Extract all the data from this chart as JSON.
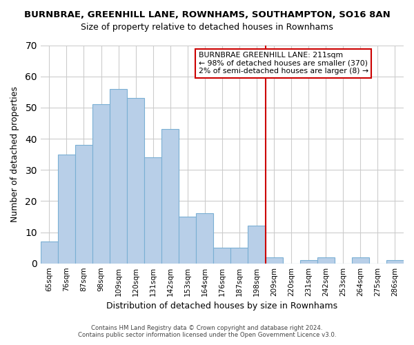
{
  "title": "BURNBRAE, GREENHILL LANE, ROWNHAMS, SOUTHAMPTON, SO16 8AN",
  "subtitle": "Size of property relative to detached houses in Rownhams",
  "xlabel": "Distribution of detached houses by size in Rownhams",
  "ylabel": "Number of detached properties",
  "bar_labels": [
    "65sqm",
    "76sqm",
    "87sqm",
    "98sqm",
    "109sqm",
    "120sqm",
    "131sqm",
    "142sqm",
    "153sqm",
    "164sqm",
    "176sqm",
    "187sqm",
    "198sqm",
    "209sqm",
    "220sqm",
    "231sqm",
    "242sqm",
    "253sqm",
    "264sqm",
    "275sqm",
    "286sqm"
  ],
  "bar_values": [
    7,
    35,
    38,
    51,
    56,
    53,
    34,
    43,
    15,
    16,
    5,
    5,
    12,
    2,
    0,
    1,
    2,
    0,
    2,
    0,
    1
  ],
  "bar_color": "#b8cfe8",
  "bar_edge_color": "#7aafd4",
  "highlight_line_color": "#cc0000",
  "highlight_label": "209sqm",
  "ylim": [
    0,
    70
  ],
  "annotation_title": "BURNBRAE GREENHILL LANE: 211sqm",
  "annotation_line1": "← 98% of detached houses are smaller (370)",
  "annotation_line2": "2% of semi-detached houses are larger (8) →",
  "annotation_box_color": "#ffffff",
  "annotation_box_edge_color": "#cc0000",
  "footer_line1": "Contains HM Land Registry data © Crown copyright and database right 2024.",
  "footer_line2": "Contains public sector information licensed under the Open Government Licence v3.0.",
  "background_color": "#ffffff",
  "grid_color": "#cccccc"
}
